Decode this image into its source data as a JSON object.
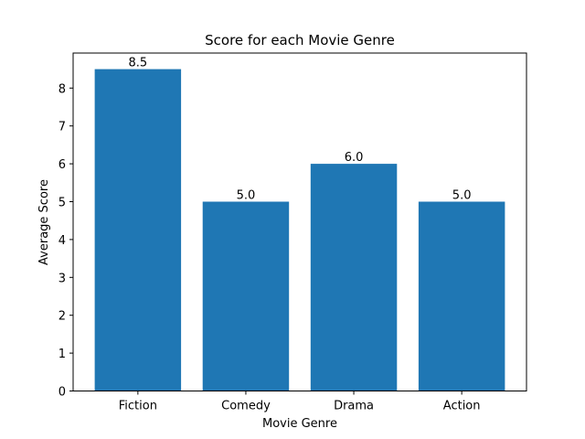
{
  "chart_data": {
    "type": "bar",
    "title": "Score for each Movie Genre",
    "xlabel": "Movie Genre",
    "ylabel": "Average Score",
    "categories": [
      "Fiction",
      "Comedy",
      "Drama",
      "Action"
    ],
    "values": [
      8.5,
      5.0,
      6.0,
      5.0
    ],
    "value_labels": [
      "8.5",
      "5.0",
      "6.0",
      "5.0"
    ],
    "y_ticks": [
      0,
      1,
      2,
      3,
      4,
      5,
      6,
      7,
      8
    ],
    "ylim": [
      0,
      8.925
    ],
    "bar_color": "#1f77b4",
    "grid": false,
    "legend": "none"
  }
}
